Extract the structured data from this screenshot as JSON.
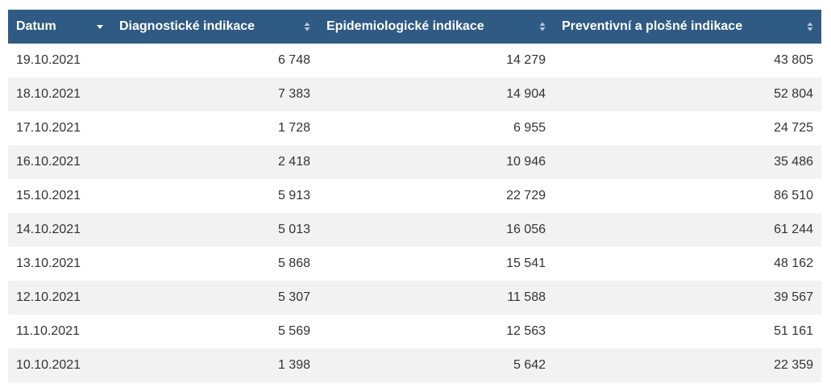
{
  "table": {
    "headers": [
      {
        "label": "Datum",
        "sort": "desc"
      },
      {
        "label": "Diagnostické indikace",
        "sort": "both"
      },
      {
        "label": "Epidemiologické indikace",
        "sort": "both"
      },
      {
        "label": "Preventivní a plošné indikace",
        "sort": "both"
      }
    ],
    "rows": [
      [
        "19.10.2021",
        "6 748",
        "14 279",
        "43 805"
      ],
      [
        "18.10.2021",
        "7 383",
        "14 904",
        "52 804"
      ],
      [
        "17.10.2021",
        "1 728",
        "6 955",
        "24 725"
      ],
      [
        "16.10.2021",
        "2 418",
        "10 946",
        "35 486"
      ],
      [
        "15.10.2021",
        "5 913",
        "22 729",
        "86 510"
      ],
      [
        "14.10.2021",
        "5 013",
        "16 056",
        "61 244"
      ],
      [
        "13.10.2021",
        "5 868",
        "15 541",
        "48 162"
      ],
      [
        "12.10.2021",
        "5 307",
        "11 588",
        "39 567"
      ],
      [
        "11.10.2021",
        "5 569",
        "12 563",
        "51 161"
      ],
      [
        "10.10.2021",
        "1 398",
        "5 642",
        "22 359"
      ]
    ]
  },
  "colors": {
    "header_bg": "#2f5a84",
    "header_text": "#ffffff",
    "row_alt": "#f2f2f2",
    "text": "#333333"
  }
}
